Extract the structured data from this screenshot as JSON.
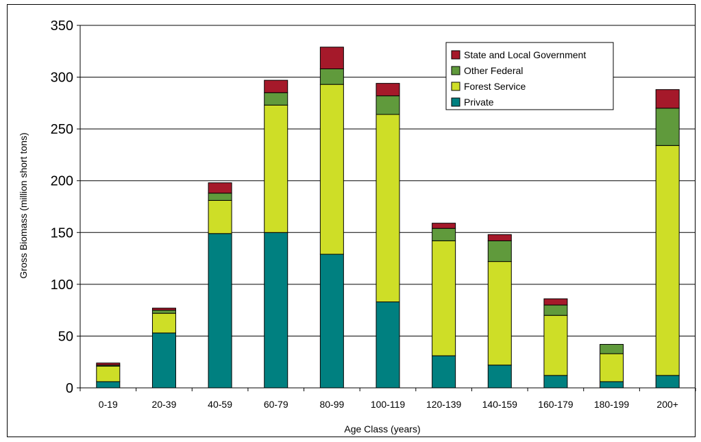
{
  "chart_data": {
    "type": "bar",
    "stacked": true,
    "title": "",
    "xlabel": "Age Class (years)",
    "ylabel": "Gross Biomass (million short tons)",
    "ylim": [
      0,
      350
    ],
    "yticks": [
      0,
      50,
      100,
      150,
      200,
      250,
      300,
      350
    ],
    "grid": true,
    "legend_position": "top-right",
    "categories": [
      "0-19",
      "20-39",
      "40-59",
      "60-79",
      "80-99",
      "100-119",
      "120-139",
      "140-159",
      "160-179",
      "180-199",
      "200+"
    ],
    "series": [
      {
        "name": "Private",
        "color": "#008080",
        "values": [
          6,
          53,
          149,
          150,
          129,
          83,
          31,
          22,
          12,
          6,
          12
        ]
      },
      {
        "name": "Forest Service",
        "color": "#cede27",
        "values": [
          15,
          19,
          32,
          123,
          164,
          181,
          111,
          100,
          58,
          27,
          222
        ]
      },
      {
        "name": "Other Federal",
        "color": "#609a3c",
        "values": [
          1,
          3,
          7,
          12,
          15,
          18,
          12,
          20,
          10,
          9,
          36
        ]
      },
      {
        "name": "State and Local Government",
        "color": "#a5192a",
        "values": [
          2,
          2,
          10,
          12,
          21,
          12,
          5,
          6,
          6,
          0,
          18
        ]
      }
    ]
  }
}
